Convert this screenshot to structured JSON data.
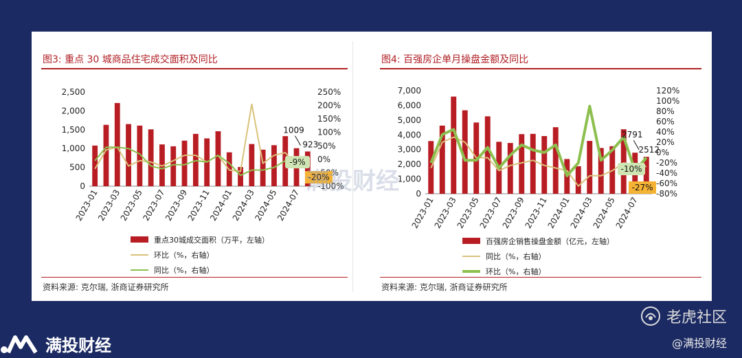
{
  "colors": {
    "bar": "#b81d24",
    "yoy_left": "#d9c27a",
    "mom_left": "#8cbf4e",
    "yoy_right": "#d9c27a",
    "mom_right": "#8cbf4e",
    "highlight": "#f5b335",
    "mom_box": "#cfe6b4",
    "background": "#1b2a63"
  },
  "left": {
    "title": "图3:  重点 30 城商品住宅成交面积及同比",
    "source": "资料来源:  克尔瑞,  浙商证券研究所",
    "annotations": {
      "last_bar_1": "1009",
      "last_bar_2": "923",
      "mom_label": "-9%",
      "yoy_label": "-20%"
    }
  },
  "right": {
    "title": "图4:  百强房企单月操盘金额及同比",
    "source": "资料来源:  克尔瑞,  浙商证券研究所",
    "annotations": {
      "last_bar_1": "2791",
      "last_bar_2": "2512",
      "mom_label": "-10%",
      "yoy_label": "-27%"
    }
  },
  "brand": {
    "name": "满投财经",
    "watermark_right": "老虎社区",
    "handle": "@满投财经",
    "center_watermark": "满投财经"
  },
  "chart_data": [
    {
      "type": "bar",
      "categories": [
        "2023-01",
        "2023-02",
        "2023-03",
        "2023-04",
        "2023-05",
        "2023-06",
        "2023-07",
        "2023-08",
        "2023-09",
        "2023-10",
        "2023-11",
        "2023-12",
        "2024-01",
        "2024-02",
        "2024-03",
        "2024-04",
        "2024-05",
        "2024-06",
        "2024-07",
        "2024-08"
      ],
      "tick_labels": [
        "2023-01",
        "2023-03",
        "2023-05",
        "2023-07",
        "2023-09",
        "2023-11",
        "2024-01",
        "2024-03",
        "2024-05",
        "2024-07"
      ],
      "y_left": {
        "range": [
          0,
          2500
        ],
        "ticks": [
          "0",
          "500",
          "1,000",
          "1,500",
          "2,000",
          "2,500"
        ]
      },
      "y_right": {
        "range": [
          -100,
          250
        ],
        "ticks": [
          "-100%",
          "-50%",
          "0%",
          "50%",
          "100%",
          "150%",
          "200%",
          "250%"
        ]
      },
      "series": [
        {
          "name": "重点30城成交面积（万平，左轴）",
          "axis": "left",
          "kind": "bar",
          "values": [
            1080,
            1630,
            2210,
            1650,
            1610,
            1510,
            1110,
            1060,
            1210,
            1390,
            1270,
            1460,
            900,
            510,
            1120,
            970,
            1090,
            1330,
            1009,
            923
          ]
        },
        {
          "name": "环比（%，右轴）",
          "axis": "right",
          "kind": "line",
          "values": [
            -35,
            35,
            45,
            -25,
            -5,
            -10,
            -25,
            -5,
            15,
            15,
            -10,
            15,
            -40,
            -45,
            205,
            -15,
            15,
            25,
            -25,
            -9
          ]
        },
        {
          "name": "同比（%，右轴）",
          "axis": "right",
          "kind": "line",
          "values": [
            -5,
            45,
            45,
            40,
            20,
            -25,
            -35,
            -20,
            -20,
            -5,
            -10,
            15,
            -15,
            -60,
            -40,
            -40,
            -30,
            -5,
            -15,
            -20
          ]
        }
      ]
    },
    {
      "type": "bar",
      "categories": [
        "2023-01",
        "2023-02",
        "2023-03",
        "2023-04",
        "2023-05",
        "2023-06",
        "2023-07",
        "2023-08",
        "2023-09",
        "2023-10",
        "2023-11",
        "2023-12",
        "2024-01",
        "2024-02",
        "2024-03",
        "2024-04",
        "2024-05",
        "2024-06",
        "2024-07",
        "2024-08"
      ],
      "tick_labels": [
        "2023-01",
        "2023-03",
        "2023-05",
        "2023-07",
        "2023-09",
        "2023-11",
        "2024-01",
        "2024-03",
        "2024-05",
        "2024-07"
      ],
      "y_left": {
        "range": [
          0,
          7000
        ],
        "ticks": [
          "0",
          "1,000",
          "2,000",
          "3,000",
          "4,000",
          "5,000",
          "6,000",
          "7,000"
        ]
      },
      "y_right": {
        "range": [
          -80,
          120
        ],
        "ticks": [
          "-80%",
          "-60%",
          "-40%",
          "-20%",
          "0%",
          "20%",
          "40%",
          "60%",
          "80%",
          "100%",
          "120%"
        ]
      },
      "series": [
        {
          "name": "百强房企销售操盘金额（亿元，左轴）",
          "axis": "left",
          "kind": "bar",
          "values": [
            3580,
            4630,
            6600,
            5670,
            4840,
            5260,
            3530,
            3450,
            4050,
            4070,
            3920,
            4520,
            2360,
            1870,
            3590,
            3110,
            3230,
            4380,
            2791,
            2512
          ]
        },
        {
          "name": "同比（%，右轴）",
          "axis": "right",
          "kind": "line",
          "values": [
            -30,
            20,
            30,
            20,
            -10,
            -10,
            -35,
            -25,
            -20,
            -15,
            -25,
            -30,
            -35,
            -65,
            -45,
            -45,
            -35,
            -20,
            -25,
            -27
          ]
        },
        {
          "name": "环比（%，右轴）",
          "axis": "right",
          "kind": "line",
          "values": [
            -20,
            35,
            45,
            -15,
            -15,
            10,
            -30,
            -5,
            15,
            5,
            0,
            15,
            -45,
            -20,
            90,
            -15,
            5,
            30,
            -35,
            -10
          ]
        }
      ]
    }
  ]
}
